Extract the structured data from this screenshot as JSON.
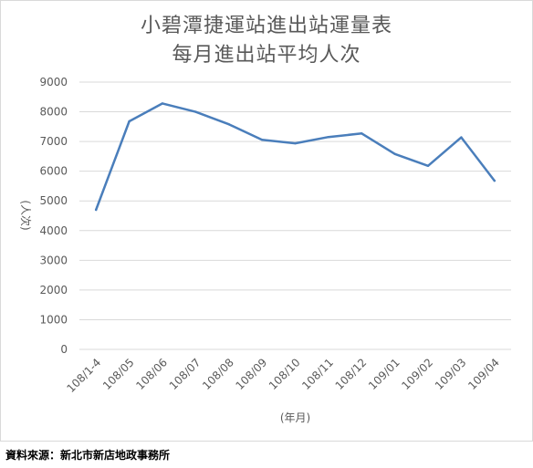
{
  "chart_data": {
    "type": "line",
    "title": "小碧潭捷運站進出站運量表",
    "subtitle": "每月進出站平均人次",
    "xlabel": "(年月)",
    "ylabel": "(人次)",
    "categories": [
      "108/1-4",
      "108/05",
      "108/06",
      "108/07",
      "108/08",
      "108/09",
      "108/10",
      "108/11",
      "108/12",
      "109/01",
      "109/02",
      "109/03",
      "109/04"
    ],
    "values": [
      4700,
      7680,
      8280,
      8000,
      7580,
      7060,
      6940,
      7150,
      7270,
      6580,
      6180,
      7140,
      5680
    ],
    "ylim": [
      0,
      9000
    ],
    "yticks": [
      "0",
      "1000",
      "2000",
      "3000",
      "4000",
      "5000",
      "6000",
      "7000",
      "8000",
      "9000"
    ],
    "grid": true,
    "line_color": "#4a7ebb",
    "grid_color": "#d9d9d9"
  },
  "source_note": "資料來源：新北市新店地政事務所"
}
